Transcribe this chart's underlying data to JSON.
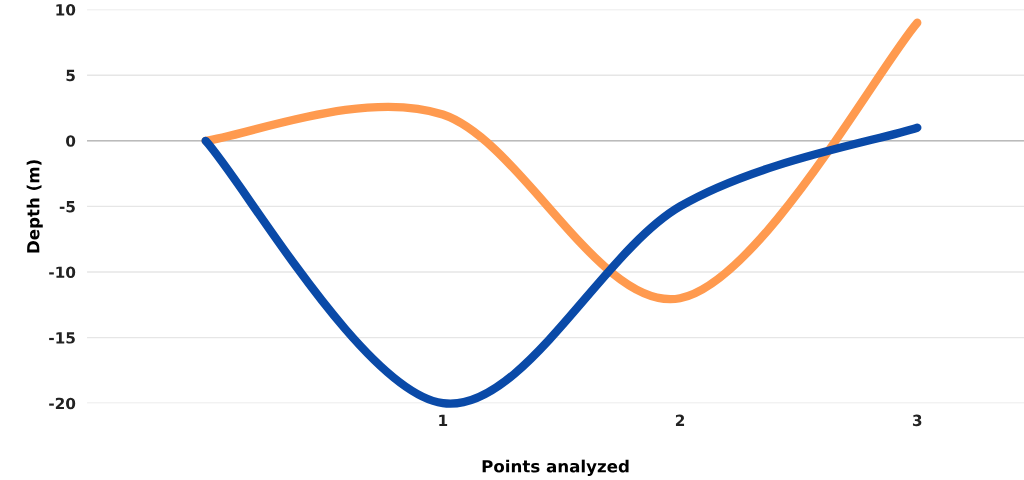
{
  "chart_data": {
    "type": "line",
    "xlabel": "Points analyzed",
    "ylabel": "Depth (m)",
    "x": [
      0,
      1,
      2,
      3
    ],
    "series": [
      {
        "color": "#ff9a4f",
        "values": [
          0,
          2,
          -12,
          9
        ]
      },
      {
        "color": "#0a4aa8",
        "values": [
          0,
          -20,
          -5,
          1
        ]
      }
    ],
    "xlim": [
      -0.5,
      3.45
    ],
    "xticks": [
      1,
      2,
      3
    ],
    "ylim": [
      -20,
      10
    ],
    "yticks": [
      -20,
      -15,
      -10,
      -5,
      0,
      5,
      10
    ],
    "ref_lines": [
      {
        "axis": "y",
        "value": 0,
        "color": "#bbbbbb"
      }
    ],
    "grid": "y",
    "marker": "none",
    "line_style": "solid"
  }
}
